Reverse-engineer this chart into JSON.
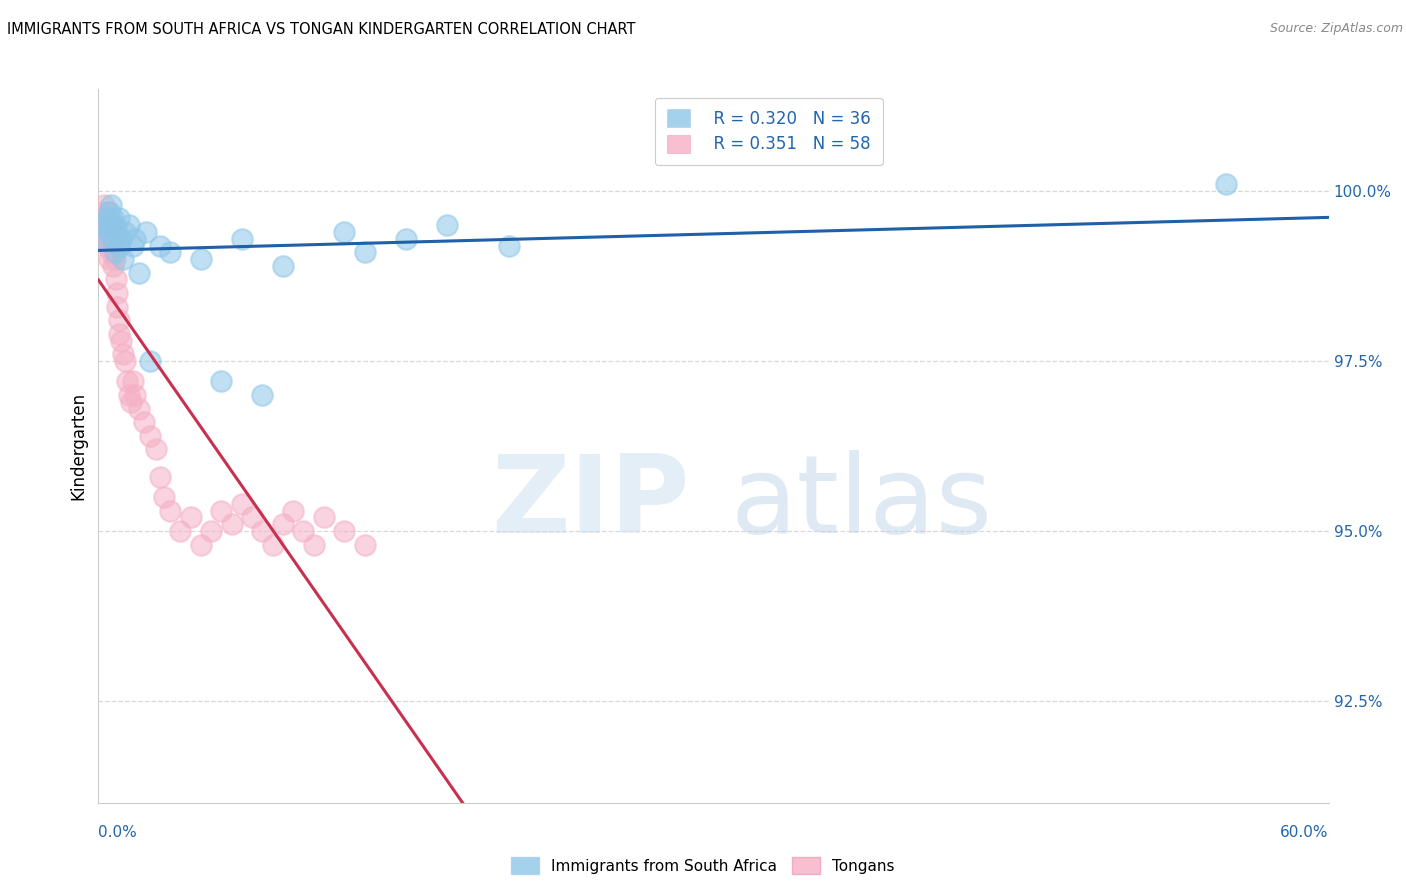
{
  "title": "IMMIGRANTS FROM SOUTH AFRICA VS TONGAN KINDERGARTEN CORRELATION CHART",
  "source": "Source: ZipAtlas.com",
  "ylabel": "Kindergarten",
  "yticks": [
    92.5,
    95.0,
    97.5,
    100.0
  ],
  "ytick_labels": [
    "92.5%",
    "95.0%",
    "97.5%",
    "100.0%"
  ],
  "xlim_pct": [
    0.0,
    60.0
  ],
  "ylim": [
    91.0,
    101.5
  ],
  "legend_r_blue": "R = 0.320",
  "legend_n_blue": "N = 36",
  "legend_r_pink": "R = 0.351",
  "legend_n_pink": "N = 58",
  "blue_color": "#8ec6e8",
  "pink_color": "#f5b0c5",
  "blue_line_color": "#2060a8",
  "pink_line_color": "#c83050",
  "grid_color": "#d8d8d8",
  "bg_color": "#ffffff",
  "blue_scatter_x": [
    0.2,
    0.3,
    0.4,
    0.5,
    0.5,
    0.6,
    0.6,
    0.7,
    0.7,
    0.8,
    0.8,
    0.9,
    1.0,
    1.0,
    1.1,
    1.2,
    1.3,
    1.5,
    1.7,
    1.8,
    2.0,
    2.3,
    2.5,
    3.0,
    3.5,
    5.0,
    6.0,
    7.0,
    8.0,
    9.0,
    12.0,
    13.0,
    15.0,
    17.0,
    20.0,
    55.0
  ],
  "blue_scatter_y": [
    99.3,
    99.5,
    99.6,
    99.4,
    99.7,
    99.5,
    99.8,
    99.6,
    99.3,
    99.5,
    99.1,
    99.4,
    99.2,
    99.6,
    99.3,
    99.0,
    99.4,
    99.5,
    99.2,
    99.3,
    98.8,
    99.4,
    97.5,
    99.2,
    99.1,
    99.0,
    97.2,
    99.3,
    97.0,
    98.9,
    99.4,
    99.1,
    99.3,
    99.5,
    99.2,
    100.1
  ],
  "pink_scatter_x": [
    0.1,
    0.15,
    0.2,
    0.2,
    0.25,
    0.3,
    0.3,
    0.35,
    0.4,
    0.4,
    0.45,
    0.5,
    0.5,
    0.5,
    0.6,
    0.6,
    0.65,
    0.7,
    0.7,
    0.8,
    0.8,
    0.85,
    0.9,
    0.9,
    1.0,
    1.0,
    1.1,
    1.2,
    1.3,
    1.4,
    1.5,
    1.6,
    1.7,
    1.8,
    2.0,
    2.2,
    2.5,
    2.8,
    3.0,
    3.2,
    3.5,
    4.0,
    4.5,
    5.0,
    5.5,
    6.0,
    6.5,
    7.0,
    7.5,
    8.0,
    8.5,
    9.0,
    9.5,
    10.0,
    10.5,
    11.0,
    12.0,
    13.0
  ],
  "pink_scatter_y": [
    99.5,
    99.7,
    99.4,
    99.6,
    99.8,
    99.5,
    99.3,
    99.6,
    99.4,
    99.2,
    99.5,
    99.7,
    99.3,
    99.0,
    99.5,
    99.1,
    99.4,
    99.2,
    98.9,
    99.3,
    99.0,
    98.7,
    98.5,
    98.3,
    98.1,
    97.9,
    97.8,
    97.6,
    97.5,
    97.2,
    97.0,
    96.9,
    97.2,
    97.0,
    96.8,
    96.6,
    96.4,
    96.2,
    95.8,
    95.5,
    95.3,
    95.0,
    95.2,
    94.8,
    95.0,
    95.3,
    95.1,
    95.4,
    95.2,
    95.0,
    94.8,
    95.1,
    95.3,
    95.0,
    94.8,
    95.2,
    95.0,
    94.8
  ]
}
